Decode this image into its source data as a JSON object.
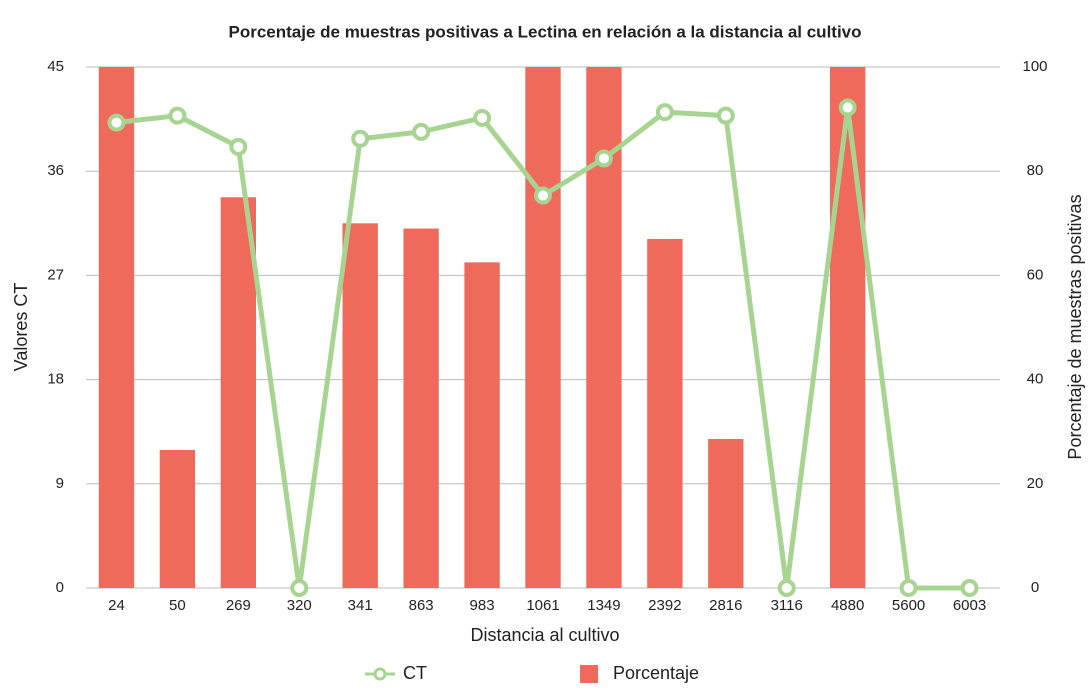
{
  "chart_data": {
    "type": "bar-line",
    "title": "Porcentaje de muestras positivas a Lectina en relación a la distancia al cultivo",
    "x_label": "Distancia al cultivo",
    "y_label": "Valores CT",
    "y2_label": "Porcentaje de muestras positivas",
    "categories": [
      "24",
      "50",
      "269",
      "320",
      "341",
      "863",
      "983",
      "1061",
      "1349",
      "2392",
      "2816",
      "3116",
      "4880",
      "5600",
      "6003"
    ],
    "series": [
      {
        "name": "CT",
        "color": "#a8d492",
        "kind": "line",
        "axis": "y",
        "values": [
          40.2,
          40.8,
          38.1,
          0,
          38.8,
          39.4,
          40.6,
          33.9,
          37.1,
          41.1,
          40.8,
          0,
          41.5,
          0,
          0
        ]
      },
      {
        "name": "Porcentaje",
        "color": "#ef6a5a",
        "kind": "bar",
        "axis": "y2",
        "values": [
          100,
          26.5,
          75,
          0,
          70,
          69,
          62.5,
          100,
          100,
          67,
          28.6,
          0,
          100,
          0,
          0
        ]
      }
    ],
    "ylim": [
      0,
      45
    ],
    "yticks": [
      0,
      9,
      18,
      27,
      36,
      45
    ],
    "y2lim": [
      0,
      100
    ],
    "y2ticks": [
      0,
      20,
      40,
      60,
      80,
      100
    ],
    "grid": true,
    "legend": "bottom"
  }
}
